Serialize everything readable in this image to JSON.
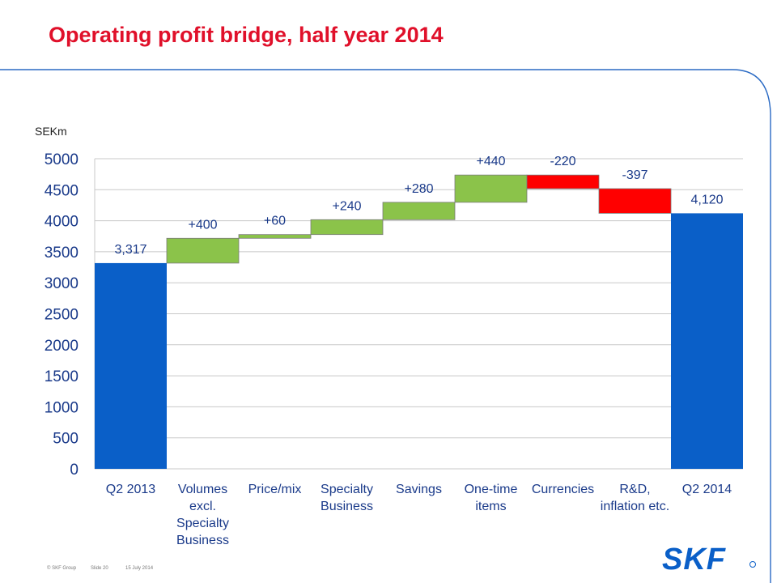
{
  "title": "Operating profit bridge, half year 2014",
  "chart_data": {
    "type": "bar",
    "subtype": "waterfall",
    "ylabel": "SEKm",
    "ylim": [
      0,
      5000
    ],
    "yticks": [
      "0",
      "500",
      "1000",
      "1500",
      "2000",
      "2500",
      "3000",
      "3500",
      "4000",
      "4500",
      "5000"
    ],
    "grid": true,
    "categories": [
      [
        "Q2 2013"
      ],
      [
        "Volumes",
        "excl.",
        "Specialty",
        "Business"
      ],
      [
        "Price/mix"
      ],
      [
        "Specialty",
        "Business"
      ],
      [
        "Savings"
      ],
      [
        "One-time",
        "items"
      ],
      [
        "Currencies"
      ],
      [
        "R&D,",
        "inflation etc."
      ],
      [
        "Q2 2014"
      ]
    ],
    "bars": [
      {
        "kind": "total",
        "start": 0,
        "end": 3317,
        "label": "3,317"
      },
      {
        "kind": "increase",
        "start": 3317,
        "end": 3717,
        "label": "+400"
      },
      {
        "kind": "increase",
        "start": 3717,
        "end": 3777,
        "label": "+60"
      },
      {
        "kind": "increase",
        "start": 3777,
        "end": 4017,
        "label": "+240"
      },
      {
        "kind": "increase",
        "start": 4017,
        "end": 4297,
        "label": "+280"
      },
      {
        "kind": "increase",
        "start": 4297,
        "end": 4737,
        "label": "+440"
      },
      {
        "kind": "decrease",
        "start": 4737,
        "end": 4517,
        "label": "-220"
      },
      {
        "kind": "decrease",
        "start": 4517,
        "end": 4120,
        "label": "-397"
      },
      {
        "kind": "total",
        "start": 0,
        "end": 4120,
        "label": "4,120"
      }
    ],
    "colors": {
      "total": "#0a5fc8",
      "increase": "#8bc34a",
      "decrease": "#ff0000"
    }
  },
  "footer": {
    "copyright": "© SKF Group",
    "slide": "Slide 20",
    "date": "15 July 2014"
  },
  "logo": {
    "text": "SKF",
    "color": "#0a5fc8"
  }
}
